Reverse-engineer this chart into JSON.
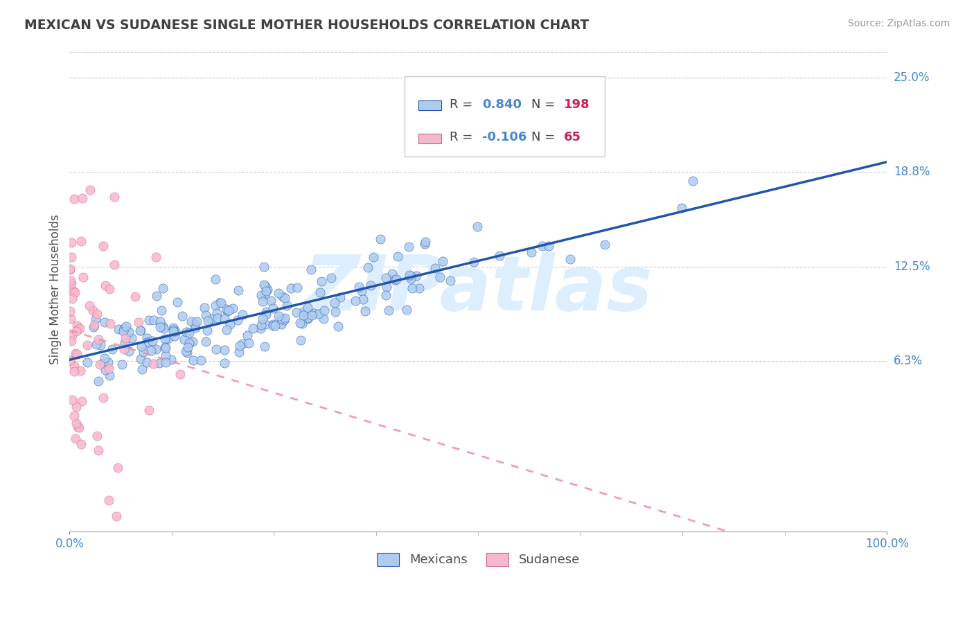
{
  "title": "MEXICAN VS SUDANESE SINGLE MOTHER HOUSEHOLDS CORRELATION CHART",
  "source": "Source: ZipAtlas.com",
  "ylabel": "Single Mother Households",
  "r_mexican": 0.84,
  "n_mexican": 198,
  "r_sudanese": -0.106,
  "n_sudanese": 65,
  "mexican_color": "#aeccf0",
  "sudanese_color": "#f8b8cc",
  "mexican_line_color": "#2255aa",
  "sudanese_line_color": "#e890a8",
  "ytick_labels": [
    "6.3%",
    "12.5%",
    "18.8%",
    "25.0%"
  ],
  "ytick_values": [
    0.063,
    0.125,
    0.188,
    0.25
  ],
  "xmin": 0.0,
  "xmax": 1.0,
  "ymin": -0.05,
  "ymax": 0.27,
  "background_color": "#ffffff",
  "grid_color": "#cccccc",
  "title_color": "#404040",
  "axis_label_color": "#505050",
  "tick_label_color": "#4488cc",
  "legend_r_color": "#4488cc",
  "legend_n_color": "#cc2255",
  "watermark_color": "#ddeeff",
  "seed": 42
}
